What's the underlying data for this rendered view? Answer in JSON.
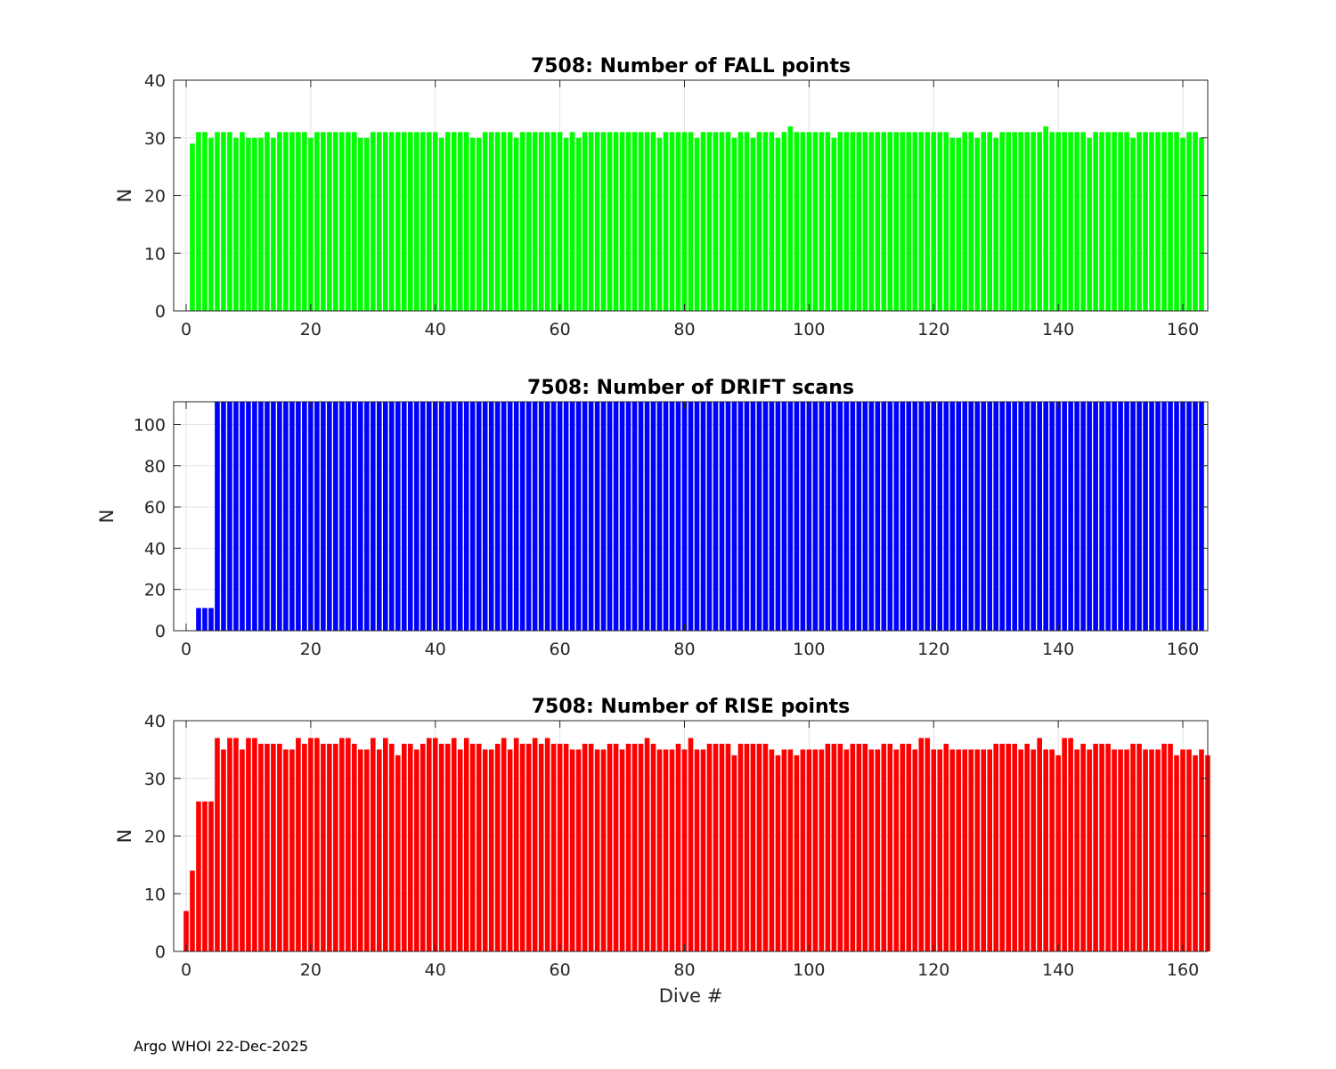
{
  "footer": "Argo WHOI 22-Dec-2025",
  "chart_data": [
    {
      "type": "bar",
      "title": "7508: Number of FALL points",
      "xlabel": "",
      "ylabel": "N",
      "color": "#00ff00",
      "xlim": [
        -2,
        164
      ],
      "ylim": [
        0,
        40
      ],
      "xticks": [
        0,
        20,
        40,
        60,
        80,
        100,
        120,
        140,
        160
      ],
      "yticks": [
        0,
        10,
        20,
        30,
        40
      ],
      "grid": true,
      "x_start": 1,
      "values": [
        29,
        31,
        31,
        30,
        31,
        31,
        31,
        30,
        31,
        30,
        30,
        30,
        31,
        30,
        31,
        31,
        31,
        31,
        31,
        30,
        31,
        31,
        31,
        31,
        31,
        31,
        31,
        30,
        30,
        31,
        31,
        31,
        31,
        31,
        31,
        31,
        31,
        31,
        31,
        31,
        30,
        31,
        31,
        31,
        31,
        30,
        30,
        31,
        31,
        31,
        31,
        31,
        30,
        31,
        31,
        31,
        31,
        31,
        31,
        31,
        30,
        31,
        30,
        31,
        31,
        31,
        31,
        31,
        31,
        31,
        31,
        31,
        31,
        31,
        31,
        30,
        31,
        31,
        31,
        31,
        31,
        30,
        31,
        31,
        31,
        31,
        31,
        30,
        31,
        31,
        30,
        31,
        31,
        31,
        30,
        31,
        32,
        31,
        31,
        31,
        31,
        31,
        31,
        30,
        31,
        31,
        31,
        31,
        31,
        31,
        31,
        31,
        31,
        31,
        31,
        31,
        31,
        31,
        31,
        31,
        31,
        31,
        30,
        30,
        31,
        31,
        30,
        31,
        31,
        30,
        31,
        31,
        31,
        31,
        31,
        31,
        31,
        32,
        31,
        31,
        31,
        31,
        31,
        31,
        30,
        31,
        31,
        31,
        31,
        31,
        31,
        30,
        31,
        31,
        31,
        31,
        31,
        31,
        31,
        30,
        31,
        31,
        30
      ]
    },
    {
      "type": "bar",
      "title": "7508: Number of DRIFT scans",
      "xlabel": "",
      "ylabel": "N",
      "color": "#0000ff",
      "xlim": [
        -2,
        164
      ],
      "ylim": [
        0,
        111
      ],
      "xticks": [
        0,
        20,
        40,
        60,
        80,
        100,
        120,
        140,
        160
      ],
      "yticks": [
        0,
        20,
        40,
        60,
        80,
        100
      ],
      "grid": true,
      "x_start": 1,
      "values": [
        0,
        11,
        11,
        11,
        111,
        111,
        111,
        111,
        111,
        111,
        111,
        111,
        111,
        111,
        111,
        111,
        111,
        111,
        111,
        111,
        111,
        111,
        111,
        111,
        111,
        111,
        111,
        111,
        111,
        111,
        111,
        111,
        111,
        111,
        111,
        111,
        111,
        111,
        111,
        111,
        111,
        111,
        111,
        111,
        111,
        111,
        111,
        111,
        111,
        111,
        111,
        111,
        111,
        111,
        111,
        111,
        111,
        111,
        111,
        111,
        111,
        111,
        111,
        111,
        111,
        111,
        111,
        111,
        111,
        111,
        111,
        111,
        111,
        111,
        111,
        111,
        111,
        111,
        111,
        111,
        111,
        111,
        111,
        111,
        111,
        111,
        111,
        111,
        111,
        111,
        111,
        111,
        111,
        111,
        111,
        111,
        111,
        111,
        111,
        111,
        111,
        111,
        111,
        111,
        111,
        111,
        111,
        111,
        111,
        111,
        111,
        111,
        111,
        111,
        111,
        111,
        111,
        111,
        111,
        111,
        111,
        111,
        111,
        111,
        111,
        111,
        111,
        111,
        111,
        111,
        111,
        111,
        111,
        111,
        111,
        111,
        111,
        111,
        111,
        111,
        111,
        111,
        111,
        111,
        111,
        111,
        111,
        111,
        111,
        111,
        111,
        111,
        111,
        111,
        111,
        111,
        111,
        111,
        111,
        111,
        111,
        111,
        111
      ]
    },
    {
      "type": "bar",
      "title": "7508: Number of RISE points",
      "xlabel": "Dive #",
      "ylabel": "N",
      "color": "#ff0000",
      "xlim": [
        -2,
        164
      ],
      "ylim": [
        0,
        40
      ],
      "xticks": [
        0,
        20,
        40,
        60,
        80,
        100,
        120,
        140,
        160
      ],
      "yticks": [
        0,
        10,
        20,
        30,
        40
      ],
      "grid": true,
      "x_start": 0,
      "values": [
        7,
        14,
        26,
        26,
        26,
        37,
        35,
        37,
        37,
        35,
        37,
        37,
        36,
        36,
        36,
        36,
        35,
        35,
        37,
        36,
        37,
        37,
        36,
        36,
        36,
        37,
        37,
        36,
        35,
        35,
        37,
        35,
        37,
        36,
        34,
        36,
        36,
        35,
        36,
        37,
        37,
        36,
        36,
        37,
        35,
        37,
        36,
        36,
        35,
        35,
        36,
        37,
        35,
        37,
        36,
        36,
        37,
        36,
        37,
        36,
        36,
        36,
        35,
        35,
        36,
        36,
        35,
        35,
        36,
        36,
        35,
        36,
        36,
        36,
        37,
        36,
        35,
        35,
        35,
        36,
        35,
        37,
        35,
        35,
        36,
        36,
        36,
        36,
        34,
        36,
        36,
        36,
        36,
        36,
        35,
        34,
        35,
        35,
        34,
        35,
        35,
        35,
        35,
        36,
        36,
        36,
        35,
        36,
        36,
        36,
        35,
        35,
        36,
        36,
        35,
        36,
        36,
        35,
        37,
        37,
        35,
        35,
        36,
        35,
        35,
        35,
        35,
        35,
        35,
        35,
        36,
        36,
        36,
        36,
        35,
        36,
        35,
        37,
        35,
        35,
        34,
        37,
        37,
        35,
        36,
        35,
        36,
        36,
        36,
        35,
        35,
        35,
        36,
        36,
        35,
        35,
        35,
        36,
        36,
        34,
        35,
        35,
        34,
        35,
        34
      ]
    }
  ]
}
